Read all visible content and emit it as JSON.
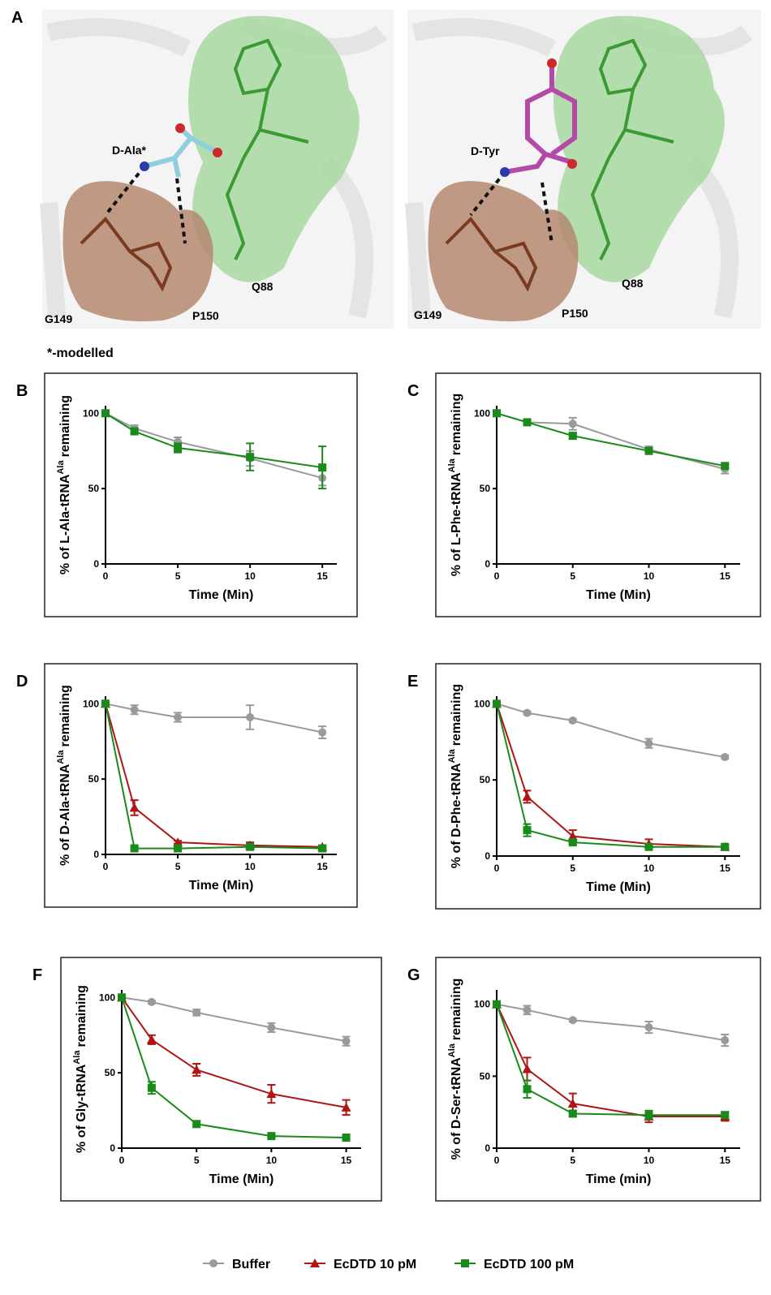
{
  "panel_a": {
    "label": "A",
    "note": "*-modelled",
    "left": {
      "ligand": "D-Ala*",
      "residues": [
        "G149",
        "P150",
        "Q88"
      ]
    },
    "right": {
      "ligand": "D-Tyr",
      "residues": [
        "G149",
        "P150",
        "Q88"
      ]
    }
  },
  "chart_data": [
    {
      "type": "line",
      "panel": "B",
      "xlabel": "Time (Min)",
      "ylabel": {
        "text": "% of L-Ala-tRNA",
        "sup": "Ala",
        "after": "remaining"
      },
      "x": [
        0,
        2,
        5,
        10,
        15
      ],
      "xlim": [
        0,
        16
      ],
      "ylim": [
        0,
        105
      ],
      "xticks": [
        0,
        5,
        10,
        15
      ],
      "yticks": [
        0,
        50,
        100
      ],
      "series": [
        {
          "name": "Buffer",
          "color": "#9a9a9a",
          "marker": "circle",
          "values": [
            100,
            90,
            81,
            70,
            57
          ],
          "errors": [
            1,
            2,
            3,
            5,
            5
          ]
        },
        {
          "name": "EcDTD 100 pM",
          "color": "#1a8a1a",
          "marker": "square",
          "values": [
            100,
            88,
            77,
            71,
            64
          ],
          "errors": [
            1,
            2,
            3,
            9,
            14
          ]
        }
      ]
    },
    {
      "type": "line",
      "panel": "C",
      "xlabel": "Time (Min)",
      "ylabel": {
        "text": "% of L-Phe-tRNA",
        "sup": "Ala",
        "after": "remaining"
      },
      "x": [
        0,
        2,
        5,
        10,
        15
      ],
      "xlim": [
        0,
        16
      ],
      "ylim": [
        0,
        105
      ],
      "xticks": [
        0,
        5,
        10,
        15
      ],
      "yticks": [
        0,
        50,
        100
      ],
      "series": [
        {
          "name": "Buffer",
          "color": "#9a9a9a",
          "marker": "circle",
          "values": [
            100,
            94,
            93,
            76,
            63
          ],
          "errors": [
            1,
            1,
            4,
            2,
            3
          ]
        },
        {
          "name": "EcDTD 100 pM",
          "color": "#1a8a1a",
          "marker": "square",
          "values": [
            100,
            94,
            85,
            75,
            65
          ],
          "errors": [
            1,
            1,
            2,
            2,
            1
          ]
        }
      ]
    },
    {
      "type": "line",
      "panel": "D",
      "xlabel": "Time (Min)",
      "ylabel": {
        "text": "% of D-Ala-tRNA",
        "sup": "Ala",
        "after": "remaining"
      },
      "x": [
        0,
        2,
        5,
        10,
        15
      ],
      "xlim": [
        0,
        16
      ],
      "ylim": [
        0,
        105
      ],
      "xticks": [
        0,
        5,
        10,
        15
      ],
      "yticks": [
        0,
        50,
        100
      ],
      "series": [
        {
          "name": "Buffer",
          "color": "#9a9a9a",
          "marker": "circle",
          "values": [
            100,
            96,
            91,
            91,
            81
          ],
          "errors": [
            1,
            3,
            3,
            8,
            4
          ]
        },
        {
          "name": "EcDTD 10 pM",
          "color": "#b01414",
          "marker": "triangle",
          "values": [
            100,
            31,
            8,
            6,
            5
          ],
          "errors": [
            1,
            5,
            1,
            2,
            1
          ]
        },
        {
          "name": "EcDTD 100 pM",
          "color": "#1a8a1a",
          "marker": "square",
          "values": [
            100,
            4,
            4,
            5,
            4
          ],
          "errors": [
            1,
            1,
            1,
            1,
            1
          ]
        }
      ]
    },
    {
      "type": "line",
      "panel": "E",
      "xlabel": "Time (Min)",
      "ylabel": {
        "text": "% of D-Phe-tRNA",
        "sup": "Ala",
        "after": "remaining"
      },
      "x": [
        0,
        2,
        5,
        10,
        15
      ],
      "xlim": [
        0,
        16
      ],
      "ylim": [
        0,
        105
      ],
      "xticks": [
        0,
        5,
        10,
        15
      ],
      "yticks": [
        0,
        50,
        100
      ],
      "series": [
        {
          "name": "Buffer",
          "color": "#9a9a9a",
          "marker": "circle",
          "values": [
            100,
            94,
            89,
            74,
            65
          ],
          "errors": [
            1,
            1,
            1,
            3,
            1
          ]
        },
        {
          "name": "EcDTD 10 pM",
          "color": "#b01414",
          "marker": "triangle",
          "values": [
            100,
            39,
            13,
            8,
            6
          ],
          "errors": [
            1,
            4,
            4,
            3,
            1
          ]
        },
        {
          "name": "EcDTD 100 pM",
          "color": "#1a8a1a",
          "marker": "square",
          "values": [
            100,
            17,
            9,
            6,
            6
          ],
          "errors": [
            1,
            4,
            1,
            2,
            1
          ]
        }
      ]
    },
    {
      "type": "line",
      "panel": "F",
      "xlabel": "Time (Min)",
      "ylabel": {
        "text": "% of Gly-tRNA",
        "sup": "Ala",
        "after": "remaining"
      },
      "x": [
        0,
        2,
        5,
        10,
        15
      ],
      "xlim": [
        0,
        16
      ],
      "ylim": [
        0,
        105
      ],
      "xticks": [
        0,
        5,
        10,
        15
      ],
      "yticks": [
        0,
        50,
        100
      ],
      "series": [
        {
          "name": "Buffer",
          "color": "#9a9a9a",
          "marker": "circle",
          "values": [
            100,
            97,
            90,
            80,
            71
          ],
          "errors": [
            1,
            1,
            2,
            3,
            3
          ]
        },
        {
          "name": "EcDTD 10 pM",
          "color": "#b01414",
          "marker": "triangle",
          "values": [
            100,
            72,
            52,
            36,
            27
          ],
          "errors": [
            1,
            3,
            4,
            6,
            5
          ]
        },
        {
          "name": "EcDTD 100 pM",
          "color": "#1a8a1a",
          "marker": "square",
          "values": [
            100,
            40,
            16,
            8,
            7
          ],
          "errors": [
            1,
            4,
            2,
            1,
            1
          ]
        }
      ]
    },
    {
      "type": "line",
      "panel": "G",
      "xlabel": "Time (min)",
      "ylabel": {
        "text": "% of D-Ser-tRNA",
        "sup": "Ala",
        "after": "remaining"
      },
      "x": [
        0,
        2,
        5,
        10,
        15
      ],
      "xlim": [
        0,
        16
      ],
      "ylim": [
        0,
        110
      ],
      "xticks": [
        0,
        5,
        10,
        15
      ],
      "yticks": [
        0,
        50,
        100
      ],
      "series": [
        {
          "name": "Buffer",
          "color": "#9a9a9a",
          "marker": "circle",
          "values": [
            100,
            96,
            89,
            84,
            75
          ],
          "errors": [
            2,
            3,
            1,
            4,
            4
          ]
        },
        {
          "name": "EcDTD 10 pM",
          "color": "#b01414",
          "marker": "triangle",
          "values": [
            100,
            55,
            31,
            22,
            22
          ],
          "errors": [
            1,
            8,
            7,
            4,
            3
          ]
        },
        {
          "name": "EcDTD 100 pM",
          "color": "#1a8a1a",
          "marker": "square",
          "values": [
            100,
            41,
            24,
            23,
            23
          ],
          "errors": [
            1,
            6,
            2,
            3,
            2
          ]
        }
      ]
    }
  ]
}
